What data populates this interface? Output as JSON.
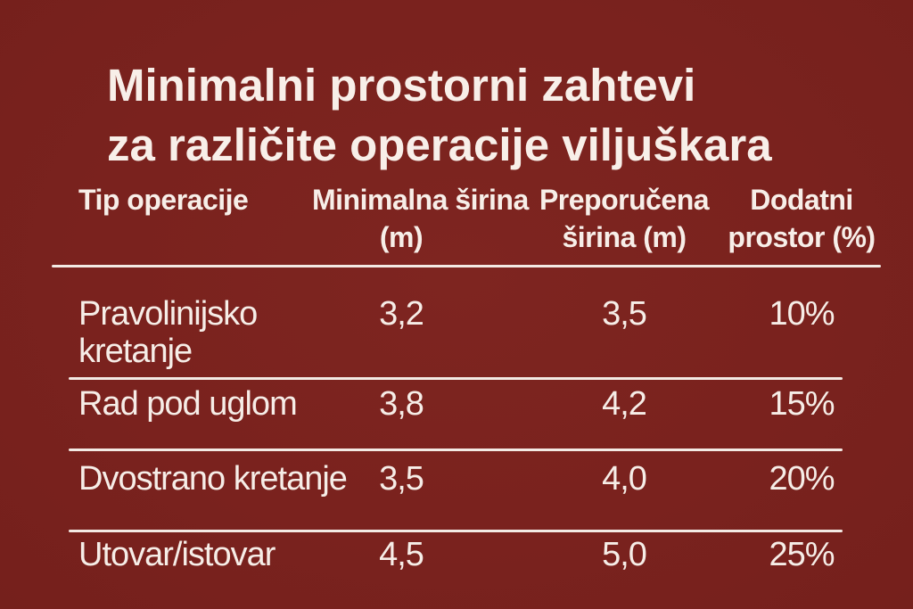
{
  "title": {
    "line1": "Minimalni prostorni zahtevi",
    "line2": "za različite operacije viljuškara"
  },
  "table": {
    "columns": [
      {
        "line1": "Tip operacije",
        "line2": ""
      },
      {
        "line1": "Minimalna širina",
        "line2": "(m)"
      },
      {
        "line1": "Preporučena",
        "line2": "širina (m)"
      },
      {
        "line1": "Dodatni",
        "line2": "prostor (%)"
      }
    ],
    "rows": [
      {
        "operation_line1": "Pravolinijsko",
        "operation_line2": "kretanje",
        "min_width": "3,2",
        "recommended_width": "3,5",
        "extra_space": "10%"
      },
      {
        "operation_line1": "Rad pod uglom",
        "operation_line2": "",
        "min_width": "3,8",
        "recommended_width": "4,2",
        "extra_space": "15%"
      },
      {
        "operation_line1": "Dvostrano kretanje",
        "operation_line2": "",
        "min_width": "3,5",
        "recommended_width": "4,0",
        "extra_space": "20%"
      },
      {
        "operation_line1": "Utovar/istovar",
        "operation_line2": "",
        "min_width": "4,5",
        "recommended_width": "5,0",
        "extra_space": "25%"
      }
    ]
  },
  "colors": {
    "background": "#7a221e",
    "text": "#f6ede7",
    "divider": "#f3eae4"
  },
  "chart_data": {
    "type": "table",
    "title": "Minimalni prostorni zahtevi za različite operacije viljuškara",
    "columns": [
      "Tip operacije",
      "Minimalna širina (m)",
      "Preporučena širina (m)",
      "Dodatni prostor (%)"
    ],
    "rows": [
      [
        "Pravolinijsko kretanje",
        "3,2",
        "3,5",
        "10%"
      ],
      [
        "Rad pod uglom",
        "3,8",
        "4,2",
        "15%"
      ],
      [
        "Dvostrano kretanje",
        "3,5",
        "4,0",
        "20%"
      ],
      [
        "Utovar/istovar",
        "4,5",
        "5,0",
        "25%"
      ]
    ],
    "categories": [
      "Pravolinijsko kretanje",
      "Rad pod uglom",
      "Dvostrano kretanje",
      "Utovar/istovar"
    ],
    "series": [
      {
        "name": "Minimalna širina (m)",
        "values": [
          3.2,
          3.8,
          3.5,
          4.5
        ]
      },
      {
        "name": "Preporučena širina (m)",
        "values": [
          3.5,
          4.2,
          4.0,
          5.0
        ]
      },
      {
        "name": "Dodatni prostor (%)",
        "values": [
          10,
          15,
          20,
          25
        ]
      }
    ]
  }
}
